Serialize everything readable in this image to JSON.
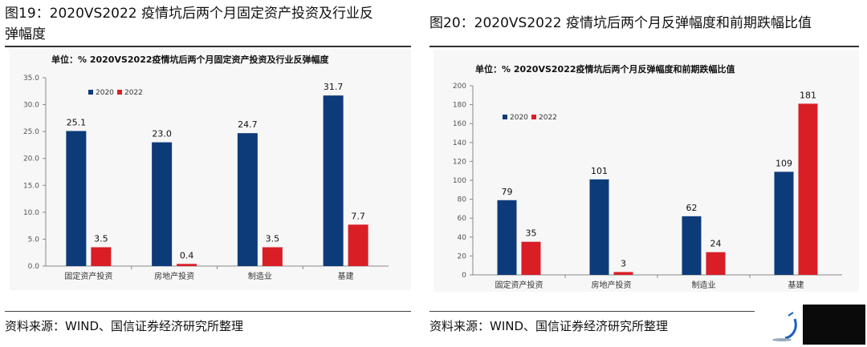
{
  "left_figure": {
    "heading_line1": "图19：2020VS2022 疫情坑后两个月固定资产投资及行业反",
    "heading_line2": "弹幅度",
    "source": "资料来源：WIND、国信证券经济研究所整理"
  },
  "right_figure": {
    "heading": "图20：2020VS2022 疫情坑后两个月反弹幅度和前期跌幅比值",
    "source": "资料来源：WIND、国信证券经济研究所整理"
  },
  "colors": {
    "s2020": "#0d3b7a",
    "s2022": "#d91e26",
    "panel": "#f7f7f7",
    "axis": "#888888"
  },
  "chart_data": [
    {
      "type": "bar",
      "title": "单位：%  2020VS2022疫情坑后两个月固定资产投资及行业反弹幅度",
      "categories": [
        "固定资产投资",
        "房地产投资",
        "制造业",
        "基建"
      ],
      "series": [
        {
          "name": "2020",
          "values": [
            25.1,
            23.0,
            24.7,
            31.7
          ],
          "labels": [
            "25.1",
            "23.0",
            "24.7",
            "31.7"
          ]
        },
        {
          "name": "2022",
          "values": [
            3.5,
            0.4,
            3.5,
            7.7
          ],
          "labels": [
            "3.5",
            "0.4",
            "3.5",
            "7.7"
          ]
        }
      ],
      "yticks": [
        "0.0",
        "5.0",
        "10.0",
        "15.0",
        "20.0",
        "25.0",
        "30.0",
        "35.0"
      ],
      "ylim": [
        0,
        35
      ],
      "legend": "top-left",
      "grid": false
    },
    {
      "type": "bar",
      "title": "单位：%  2020VS2022疫情坑后两个月反弹幅度和前期跌幅比值",
      "categories": [
        "固定资产投资",
        "房地产投资",
        "制造业",
        "基建"
      ],
      "series": [
        {
          "name": "2020",
          "values": [
            79,
            101,
            62,
            109
          ],
          "labels": [
            "79",
            "101",
            "62",
            "109"
          ]
        },
        {
          "name": "2022",
          "values": [
            35,
            3,
            24,
            181
          ],
          "labels": [
            "35",
            "3",
            "24",
            "181"
          ]
        }
      ],
      "yticks": [
        "0",
        "20",
        "40",
        "60",
        "80",
        "100",
        "120",
        "140",
        "160",
        "180",
        "200"
      ],
      "ylim": [
        0,
        200
      ],
      "legend": "top-left",
      "grid": false
    }
  ]
}
